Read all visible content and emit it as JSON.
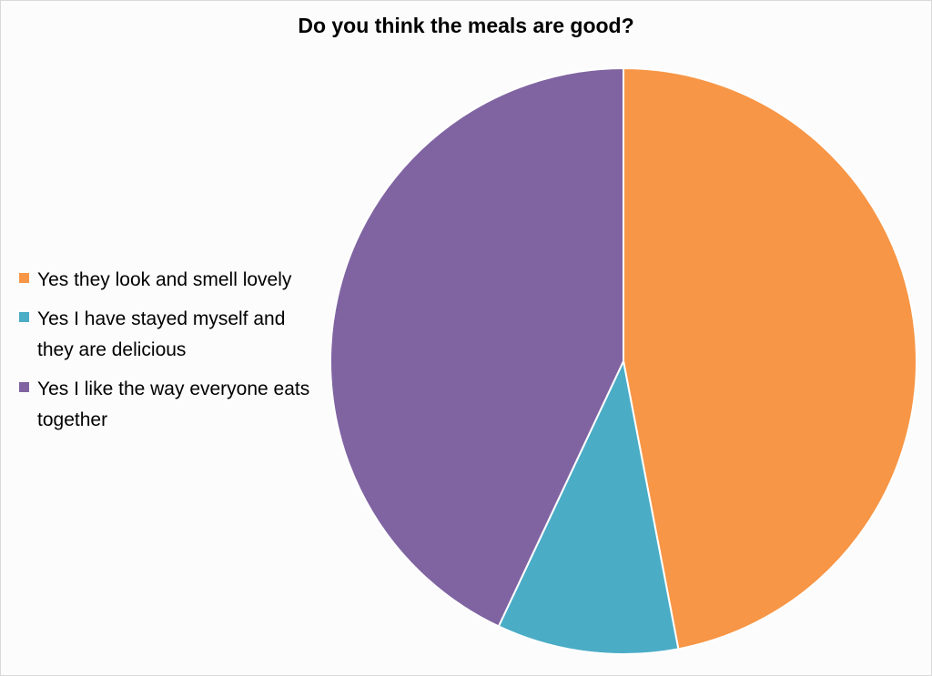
{
  "chart_data": {
    "type": "pie",
    "title": "Do you think the meals are good?",
    "categories": [
      "Yes they look and smell lovely",
      "Yes I have stayed myself and they are delicious",
      "Yes I like the way everyone eats together"
    ],
    "values": [
      47,
      10,
      43
    ],
    "colors": [
      "#f79646",
      "#4bacc6",
      "#8064a2"
    ],
    "start_angle_deg": 0,
    "direction": "clockwise",
    "legend_position": "left"
  }
}
